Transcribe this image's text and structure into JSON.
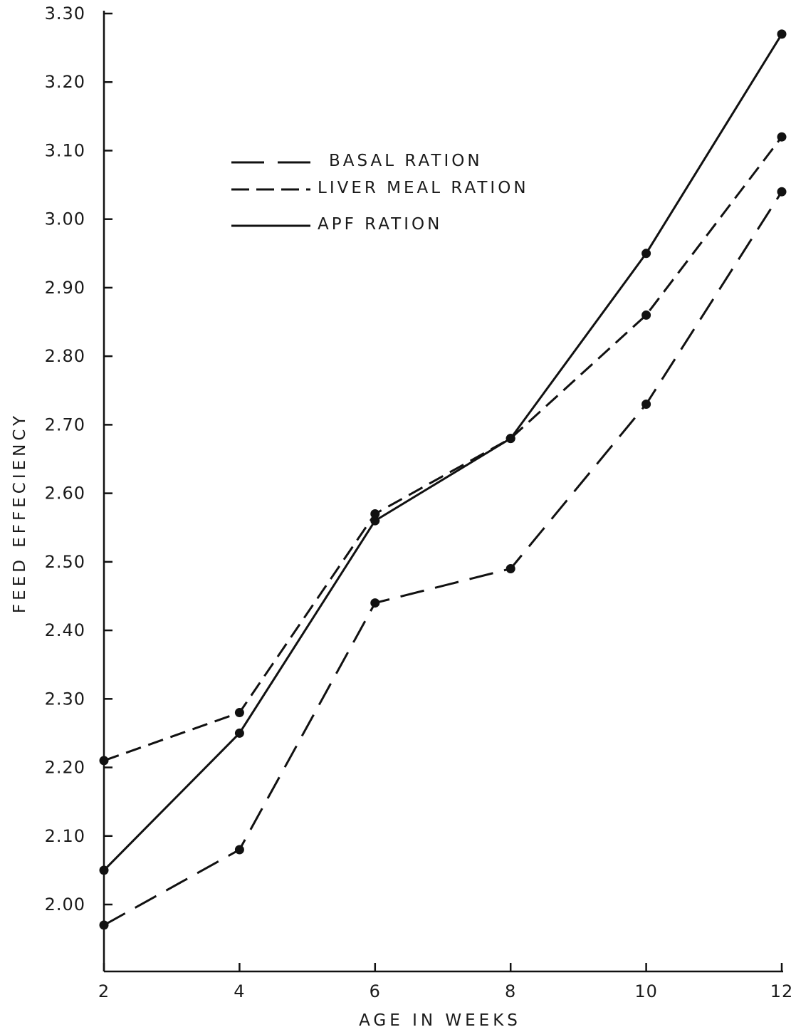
{
  "chart_data": {
    "type": "line",
    "title": "",
    "xlabel": "AGE IN WEEKS",
    "ylabel": "FEED EFFECIENCY",
    "x": [
      2,
      4,
      6,
      8,
      10,
      12
    ],
    "x_tick_labels": [
      "2",
      "4",
      "6",
      "8",
      "10",
      "12"
    ],
    "y_tick_labels": [
      "2.00",
      "2.10",
      "2.20",
      "2.30",
      "2.40",
      "2.50",
      "2.60",
      "2.70",
      "2.80",
      "2.90",
      "3.00",
      "3.10",
      "3.20",
      "3.30"
    ],
    "y_ticks": [
      2.0,
      2.1,
      2.2,
      2.3,
      2.4,
      2.5,
      2.6,
      2.7,
      2.8,
      2.9,
      3.0,
      3.1,
      3.2,
      3.3
    ],
    "xlim": [
      2,
      12
    ],
    "ylim": [
      1.93,
      3.3
    ],
    "grid": false,
    "legend_position": "top-left",
    "series": [
      {
        "name": "BASAL RATION",
        "line_style": "long-dash",
        "values": [
          1.97,
          2.08,
          2.44,
          2.49,
          2.73,
          3.04
        ]
      },
      {
        "name": "LIVER MEAL RATION",
        "line_style": "dash",
        "values": [
          2.21,
          2.28,
          2.57,
          2.68,
          2.86,
          3.12
        ]
      },
      {
        "name": "APF RATION",
        "line_style": "solid",
        "values": [
          2.05,
          2.25,
          2.56,
          2.68,
          2.95,
          3.27
        ]
      }
    ],
    "colors": {
      "line": "#111111",
      "text": "#1a1a1a",
      "background": "#ffffff"
    }
  }
}
